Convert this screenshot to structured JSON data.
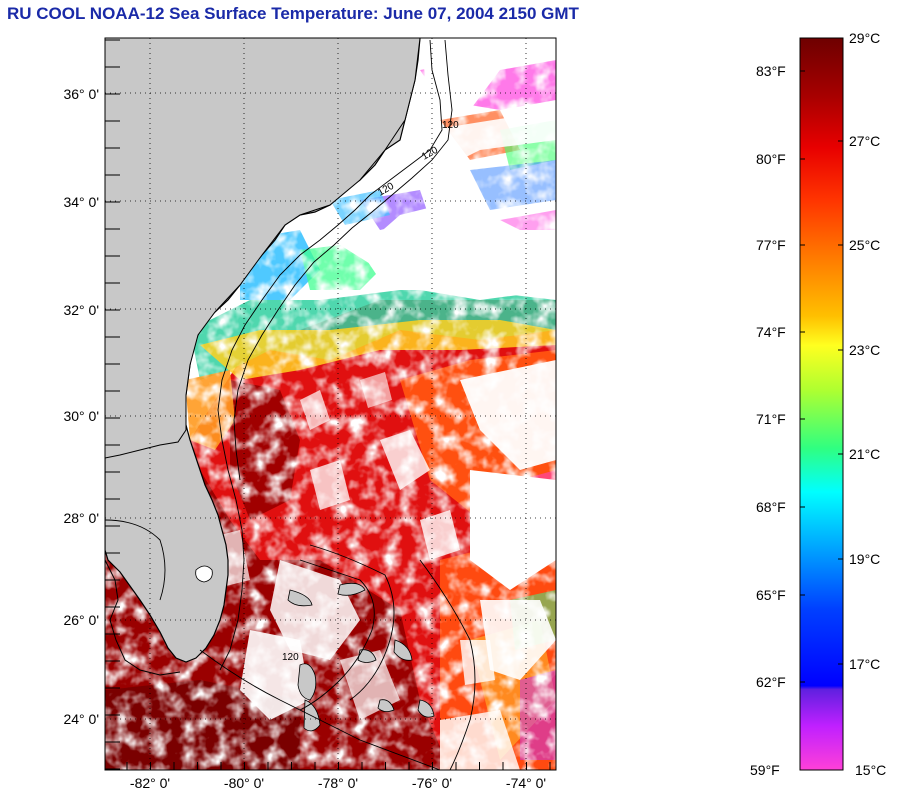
{
  "title": "RU COOL  NOAA-12  Sea Surface Temperature:  June 07, 2004 2150 GMT",
  "map": {
    "lat_labels": [
      "36° 0'",
      "34° 0'",
      "32° 0'",
      "30° 0'",
      "28° 0'",
      "26° 0'",
      "24° 0'"
    ],
    "lon_labels": [
      "-82° 0'",
      "-80° 0'",
      "-78° 0'",
      "-76° 0'",
      "-74° 0'"
    ],
    "contour_labels": [
      "120",
      "120",
      "120",
      "120"
    ],
    "land_color": "#c8c8c8",
    "cloud_color": "#ffffff"
  },
  "colorbar": {
    "celsius_labels": [
      "29°C",
      "27°C",
      "25°C",
      "23°C",
      "21°C",
      "19°C",
      "17°C",
      "15°C"
    ],
    "fahrenheit_labels": [
      "83°F",
      "80°F",
      "77°F",
      "74°F",
      "71°F",
      "68°F",
      "65°F",
      "62°F",
      "59°F"
    ],
    "stops": [
      "#7a0000",
      "#b80000",
      "#ff1a00",
      "#ff7a00",
      "#ffd000",
      "#ffff20",
      "#a8ff30",
      "#30ff70",
      "#00ffff",
      "#00a8ff",
      "#0040ff",
      "#0000ff",
      "#8030ff",
      "#e020ff",
      "#ff40e0"
    ]
  }
}
